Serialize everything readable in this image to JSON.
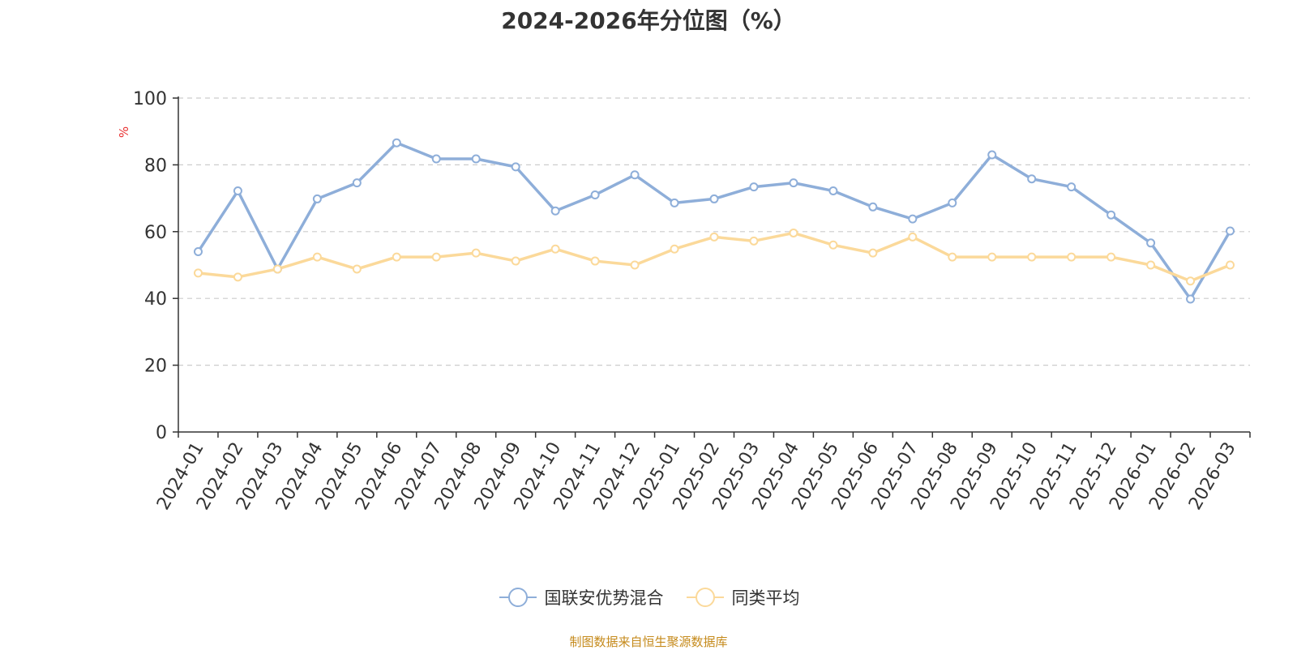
{
  "chart_data": {
    "type": "line",
    "title": "2024-2026年分位图（%）",
    "ylabel": "%",
    "xlabel": "",
    "ylim": [
      0,
      100
    ],
    "yticks": [
      0,
      20,
      40,
      60,
      80,
      100
    ],
    "grid": true,
    "legend_position": "bottom",
    "categories": [
      "2024-01",
      "2024-02",
      "2024-03",
      "2024-04",
      "2024-05",
      "2024-06",
      "2024-07",
      "2024-08",
      "2024-09",
      "2024-10",
      "2024-11",
      "2024-12",
      "2025-01",
      "2025-02",
      "2025-03",
      "2025-04",
      "2025-05",
      "2025-06",
      "2025-07",
      "2025-08",
      "2025-09",
      "2025-10",
      "2025-11",
      "2025-12",
      "2026-01",
      "2026-02",
      "2026-03"
    ],
    "series": [
      {
        "name": "国联安优势混合",
        "color": "#8eaed9",
        "values": [
          54,
          72.2,
          48.8,
          69.8,
          74.6,
          86.6,
          81.8,
          81.8,
          79.4,
          66.2,
          71,
          77,
          68.6,
          69.8,
          73.4,
          74.6,
          72.2,
          67.4,
          63.8,
          68.6,
          83,
          75.8,
          73.4,
          65,
          56.6,
          39.8,
          60.2
        ]
      },
      {
        "name": "同类平均",
        "color": "#fbd99a",
        "values": [
          47.6,
          46.4,
          48.8,
          52.4,
          48.8,
          52.4,
          52.4,
          53.6,
          51.2,
          54.8,
          51.2,
          50,
          54.8,
          58.4,
          57.2,
          59.6,
          56,
          53.6,
          58.4,
          52.4,
          52.4,
          52.4,
          52.4,
          52.4,
          50,
          45.2,
          50
        ]
      }
    ]
  },
  "source_note": "制图数据来自恒生聚源数据库"
}
